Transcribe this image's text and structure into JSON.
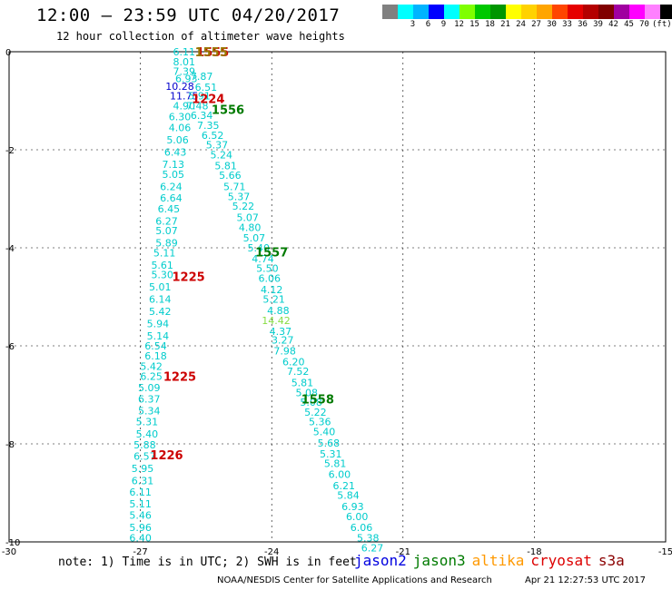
{
  "header": {
    "title": "12:00 — 23:59 UTC 04/20/2017",
    "subtitle": "12 hour collection of altimeter wave heights"
  },
  "colorbar": {
    "colors": [
      "#808080",
      "#00ffff",
      "#00b4ff",
      "#0000ff",
      "#00ffff",
      "#7fff00",
      "#00c800",
      "#009600",
      "#ffff00",
      "#ffd200",
      "#ffa500",
      "#ff4500",
      "#e60000",
      "#b40000",
      "#800000",
      "#a000a0",
      "#ff00ff",
      "#ff80ff",
      "#000000"
    ],
    "labels": [
      "",
      "3",
      "6",
      "9",
      "12",
      "15",
      "18",
      "21",
      "24",
      "27",
      "30",
      "33",
      "36",
      "39",
      "42",
      "45",
      "70",
      "(ft)",
      ""
    ]
  },
  "footer": {
    "note": "note: 1) Time is in UTC; 2) SWH is in feet",
    "satellites": [
      {
        "name": "jason2",
        "color": "#0000e0"
      },
      {
        "name": "jason3",
        "color": "#007a00"
      },
      {
        "name": "altika",
        "color": "#ff9900"
      },
      {
        "name": "cryosat",
        "color": "#dd0000"
      },
      {
        "name": "s3a",
        "color": "#8b0000"
      }
    ],
    "credit": "NOAA/NESDIS Center for Satellite Applications and Research",
    "timestamp": "Apr 21 12:27:53 UTC 2017"
  },
  "chart_data": {
    "type": "scatter",
    "xlim": [
      -30,
      -15
    ],
    "ylim": [
      -10,
      0
    ],
    "xticks": [
      -30,
      -27,
      -24,
      -21,
      -18,
      -15
    ],
    "yticks": [
      0,
      -2,
      -4,
      -6,
      -8,
      -10
    ],
    "grid": true,
    "tracks": [
      {
        "x": -26.0,
        "y": -0.0,
        "t": "6.11",
        "c": "#00cccc"
      },
      {
        "x": -26.0,
        "y": -0.2,
        "t": "8.01",
        "c": "#00cccc"
      },
      {
        "x": -26.0,
        "y": -0.4,
        "t": "7.39",
        "c": "#00cccc"
      },
      {
        "x": -25.95,
        "y": -0.55,
        "t": "6.93",
        "c": "#00cccc"
      },
      {
        "x": -25.6,
        "y": -0.5,
        "t": "7.87",
        "c": "#00cccc"
      },
      {
        "x": -25.5,
        "y": -0.72,
        "t": "6.51",
        "c": "#00cccc"
      },
      {
        "x": -26.1,
        "y": -0.7,
        "t": "10.28",
        "c": "#0000cc"
      },
      {
        "x": -26.0,
        "y": -0.9,
        "t": "11.75",
        "c": "#0000cc"
      },
      {
        "x": -25.65,
        "y": -0.9,
        "t": "5.91",
        "c": "#00cccc"
      },
      {
        "x": -25.7,
        "y": -1.1,
        "t": "7.48",
        "c": "#00cccc"
      },
      {
        "x": -26.0,
        "y": -1.1,
        "t": "4.90",
        "c": "#00cccc"
      },
      {
        "x": -25.6,
        "y": -1.3,
        "t": "6.34",
        "c": "#00cccc"
      },
      {
        "x": -26.1,
        "y": -1.32,
        "t": "6.30",
        "c": "#00cccc"
      },
      {
        "x": -25.45,
        "y": -1.5,
        "t": "7.35",
        "c": "#00cccc"
      },
      {
        "x": -26.1,
        "y": -1.55,
        "t": "4.06",
        "c": "#00cccc"
      },
      {
        "x": -25.35,
        "y": -1.7,
        "t": "6.52",
        "c": "#00cccc"
      },
      {
        "x": -26.15,
        "y": -1.8,
        "t": "5.06",
        "c": "#00cccc"
      },
      {
        "x": -25.25,
        "y": -1.9,
        "t": "5.37",
        "c": "#00cccc"
      },
      {
        "x": -26.2,
        "y": -2.05,
        "t": "6.43",
        "c": "#00cccc"
      },
      {
        "x": -25.15,
        "y": -2.1,
        "t": "5.24",
        "c": "#00cccc"
      },
      {
        "x": -26.25,
        "y": -2.3,
        "t": "7.13",
        "c": "#00cccc"
      },
      {
        "x": -25.05,
        "y": -2.32,
        "t": "5.81",
        "c": "#00cccc"
      },
      {
        "x": -26.25,
        "y": -2.5,
        "t": "5.05",
        "c": "#00cccc"
      },
      {
        "x": -24.95,
        "y": -2.52,
        "t": "5.66",
        "c": "#00cccc"
      },
      {
        "x": -26.3,
        "y": -2.75,
        "t": "6.24",
        "c": "#00cccc"
      },
      {
        "x": -24.85,
        "y": -2.75,
        "t": "5.71",
        "c": "#00cccc"
      },
      {
        "x": -24.75,
        "y": -2.95,
        "t": "5.37",
        "c": "#00cccc"
      },
      {
        "x": -26.3,
        "y": -2.98,
        "t": "6.64",
        "c": "#00cccc"
      },
      {
        "x": -24.65,
        "y": -3.15,
        "t": "5.22",
        "c": "#00cccc"
      },
      {
        "x": -26.35,
        "y": -3.2,
        "t": "6.45",
        "c": "#00cccc"
      },
      {
        "x": -24.55,
        "y": -3.38,
        "t": "5.07",
        "c": "#00cccc"
      },
      {
        "x": -26.4,
        "y": -3.45,
        "t": "6.27",
        "c": "#00cccc"
      },
      {
        "x": -24.5,
        "y": -3.58,
        "t": "4.80",
        "c": "#00cccc"
      },
      {
        "x": -26.4,
        "y": -3.65,
        "t": "5.07",
        "c": "#00cccc"
      },
      {
        "x": -24.4,
        "y": -3.8,
        "t": "5.07",
        "c": "#00cccc"
      },
      {
        "x": -26.4,
        "y": -3.9,
        "t": "5.89",
        "c": "#00cccc"
      },
      {
        "x": -24.3,
        "y": -4.0,
        "t": "5.40",
        "c": "#00cccc"
      },
      {
        "x": -26.45,
        "y": -4.1,
        "t": "5.11",
        "c": "#00cccc"
      },
      {
        "x": -24.2,
        "y": -4.22,
        "t": "4.74",
        "c": "#00cccc"
      },
      {
        "x": -26.5,
        "y": -4.35,
        "t": "5.61",
        "c": "#00cccc"
      },
      {
        "x": -24.1,
        "y": -4.42,
        "t": "5.50",
        "c": "#00cccc"
      },
      {
        "x": -26.5,
        "y": -4.55,
        "t": "5.30",
        "c": "#00cccc"
      },
      {
        "x": -24.05,
        "y": -4.62,
        "t": "6.06",
        "c": "#00cccc"
      },
      {
        "x": -24.0,
        "y": -4.85,
        "t": "4.12",
        "c": "#00cccc"
      },
      {
        "x": -26.55,
        "y": -4.8,
        "t": "5.01",
        "c": "#00cccc"
      },
      {
        "x": -23.95,
        "y": -5.05,
        "t": "5.21",
        "c": "#00cccc"
      },
      {
        "x": -26.55,
        "y": -5.05,
        "t": "6.14",
        "c": "#00cccc"
      },
      {
        "x": -23.85,
        "y": -5.28,
        "t": "4.88",
        "c": "#00cccc"
      },
      {
        "x": -26.55,
        "y": -5.3,
        "t": "5.42",
        "c": "#00cccc"
      },
      {
        "x": -23.9,
        "y": -5.48,
        "t": "14.42",
        "c": "#88dd44"
      },
      {
        "x": -26.6,
        "y": -5.55,
        "t": "5.94",
        "c": "#00cccc"
      },
      {
        "x": -23.8,
        "y": -5.7,
        "t": "4.37",
        "c": "#00cccc"
      },
      {
        "x": -26.6,
        "y": -5.8,
        "t": "5.14",
        "c": "#00cccc"
      },
      {
        "x": -23.75,
        "y": -5.88,
        "t": "3.27",
        "c": "#00cccc"
      },
      {
        "x": -26.65,
        "y": -6.0,
        "t": "6.54",
        "c": "#00cccc"
      },
      {
        "x": -23.7,
        "y": -6.1,
        "t": "7.98",
        "c": "#00cccc"
      },
      {
        "x": -26.65,
        "y": -6.2,
        "t": "6.18",
        "c": "#00cccc"
      },
      {
        "x": -23.5,
        "y": -6.32,
        "t": "6.20",
        "c": "#00cccc"
      },
      {
        "x": -26.75,
        "y": -6.42,
        "t": "5.42",
        "c": "#00cccc"
      },
      {
        "x": -23.4,
        "y": -6.52,
        "t": "7.52",
        "c": "#00cccc"
      },
      {
        "x": -26.75,
        "y": -6.62,
        "t": "6.25",
        "c": "#00cccc"
      },
      {
        "x": -23.3,
        "y": -6.75,
        "t": "5.81",
        "c": "#00cccc"
      },
      {
        "x": -26.8,
        "y": -6.85,
        "t": "5.09",
        "c": "#00cccc"
      },
      {
        "x": -23.2,
        "y": -6.95,
        "t": "5.08",
        "c": "#00cccc"
      },
      {
        "x": -26.8,
        "y": -7.08,
        "t": "6.37",
        "c": "#00cccc"
      },
      {
        "x": -23.1,
        "y": -7.15,
        "t": "5.08",
        "c": "#00cccc"
      },
      {
        "x": -26.8,
        "y": -7.32,
        "t": "5.34",
        "c": "#00cccc"
      },
      {
        "x": -23.0,
        "y": -7.35,
        "t": "5.22",
        "c": "#00cccc"
      },
      {
        "x": -26.85,
        "y": -7.55,
        "t": "5.31",
        "c": "#00cccc"
      },
      {
        "x": -22.9,
        "y": -7.55,
        "t": "5.36",
        "c": "#00cccc"
      },
      {
        "x": -22.8,
        "y": -7.75,
        "t": "5.40",
        "c": "#00cccc"
      },
      {
        "x": -26.85,
        "y": -7.8,
        "t": "5.40",
        "c": "#00cccc"
      },
      {
        "x": -22.7,
        "y": -7.98,
        "t": "5.68",
        "c": "#00cccc"
      },
      {
        "x": -26.9,
        "y": -8.02,
        "t": "5.88",
        "c": "#00cccc"
      },
      {
        "x": -22.65,
        "y": -8.2,
        "t": "5.31",
        "c": "#00cccc"
      },
      {
        "x": -26.9,
        "y": -8.25,
        "t": "6.57",
        "c": "#00cccc"
      },
      {
        "x": -22.55,
        "y": -8.4,
        "t": "5.81",
        "c": "#00cccc"
      },
      {
        "x": -26.95,
        "y": -8.5,
        "t": "5.95",
        "c": "#00cccc"
      },
      {
        "x": -22.45,
        "y": -8.62,
        "t": "6.00",
        "c": "#00cccc"
      },
      {
        "x": -26.95,
        "y": -8.75,
        "t": "6.31",
        "c": "#00cccc"
      },
      {
        "x": -22.35,
        "y": -8.85,
        "t": "6.21",
        "c": "#00cccc"
      },
      {
        "x": -27.0,
        "y": -8.98,
        "t": "6.11",
        "c": "#00cccc"
      },
      {
        "x": -22.25,
        "y": -9.05,
        "t": "5.84",
        "c": "#00cccc"
      },
      {
        "x": -27.0,
        "y": -9.22,
        "t": "5.11",
        "c": "#00cccc"
      },
      {
        "x": -22.15,
        "y": -9.28,
        "t": "6.93",
        "c": "#00cccc"
      },
      {
        "x": -27.0,
        "y": -9.45,
        "t": "5.46",
        "c": "#00cccc"
      },
      {
        "x": -22.05,
        "y": -9.48,
        "t": "6.00",
        "c": "#00cccc"
      },
      {
        "x": -27.0,
        "y": -9.7,
        "t": "5.96",
        "c": "#00cccc"
      },
      {
        "x": -21.95,
        "y": -9.7,
        "t": "6.06",
        "c": "#00cccc"
      },
      {
        "x": -27.0,
        "y": -9.92,
        "t": "6.40",
        "c": "#00cccc"
      },
      {
        "x": -21.8,
        "y": -9.92,
        "t": "5.38",
        "c": "#00cccc"
      },
      {
        "x": -21.7,
        "y": -10.12,
        "t": "6.27",
        "c": "#00cccc"
      }
    ],
    "time_labels": [
      {
        "x": -25.35,
        "y": 0.0,
        "t": "1555",
        "c": "#cc0000"
      },
      {
        "x": -25.38,
        "y": 0.0,
        "t": "1555",
        "c": "#997700"
      },
      {
        "x": -25.45,
        "y": -0.95,
        "t": "1224",
        "c": "#cc0000"
      },
      {
        "x": -25.0,
        "y": -1.18,
        "t": "1556",
        "c": "#007a00"
      },
      {
        "x": -24.0,
        "y": -4.08,
        "t": "1557",
        "c": "#007a00"
      },
      {
        "x": -25.9,
        "y": -4.58,
        "t": "1225",
        "c": "#cc0000"
      },
      {
        "x": -26.1,
        "y": -6.62,
        "t": "1225",
        "c": "#cc0000"
      },
      {
        "x": -22.95,
        "y": -7.08,
        "t": "1558",
        "c": "#007a00"
      },
      {
        "x": -26.4,
        "y": -8.22,
        "t": "1226",
        "c": "#cc0000"
      }
    ]
  }
}
